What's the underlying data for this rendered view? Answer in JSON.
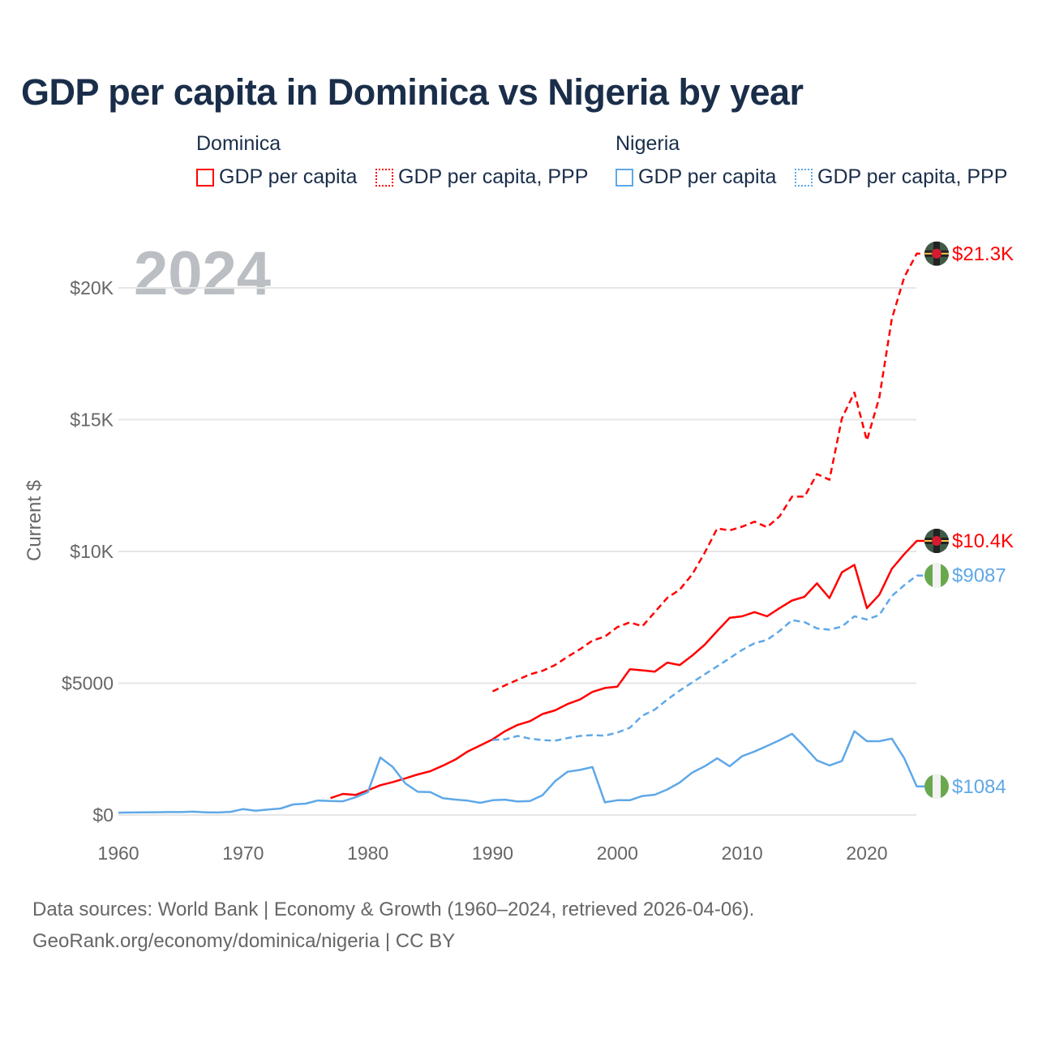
{
  "chart_data": {
    "type": "line",
    "title": "GDP per capita in Dominica vs Nigeria by year",
    "ylabel": "Current $",
    "xlabel": "",
    "xlim": [
      1960,
      2024
    ],
    "ylim": [
      0,
      22000
    ],
    "x_ticks": [
      1960,
      1970,
      1980,
      1990,
      2000,
      2010,
      2020
    ],
    "x_tick_labels": [
      "1960",
      "1970",
      "1980",
      "1990",
      "2000",
      "2010",
      "2020"
    ],
    "y_ticks": [
      0,
      5000,
      10000,
      15000,
      20000
    ],
    "y_tick_labels": [
      "$0",
      "$5000",
      "$10K",
      "$15K",
      "$20K"
    ],
    "grid": true,
    "year_watermark": "2024",
    "legend": {
      "placement": "top",
      "groups": [
        {
          "name": "Dominica",
          "entries": [
            "GDP per capita",
            "GDP per capita, PPP"
          ]
        },
        {
          "name": "Nigeria",
          "entries": [
            "GDP per capita",
            "GDP per capita, PPP"
          ]
        }
      ]
    },
    "series": [
      {
        "name": "Dominica GDP per capita",
        "country": "Dominica",
        "color": "#ff0000",
        "style": "solid",
        "end_label": "$10.4K",
        "start_year": 1977,
        "values": [
          640,
          800,
          760,
          940,
          1130,
          1250,
          1390,
          1540,
          1660,
          1870,
          2100,
          2410,
          2640,
          2870,
          3180,
          3420,
          3560,
          3830,
          3970,
          4210,
          4380,
          4670,
          4820,
          4870,
          5530,
          5490,
          5440,
          5780,
          5690,
          6050,
          6460,
          6980,
          7480,
          7540,
          7700,
          7540,
          7850,
          8140,
          8280,
          8790,
          8230,
          9210,
          9490,
          7850,
          8360,
          9340,
          9900,
          10400
        ]
      },
      {
        "name": "Dominica GDP per capita, PPP",
        "country": "Dominica",
        "color": "#ff0000",
        "style": "dashed",
        "end_label": "$21.3K",
        "start_year": 1990,
        "values": [
          4690,
          4920,
          5130,
          5340,
          5470,
          5690,
          6000,
          6290,
          6620,
          6770,
          7130,
          7310,
          7160,
          7700,
          8240,
          8550,
          9130,
          9950,
          10870,
          10800,
          10940,
          11130,
          10920,
          11330,
          12080,
          12080,
          12940,
          12720,
          15050,
          16030,
          14210,
          15850,
          18820,
          20410,
          21300
        ]
      },
      {
        "name": "Nigeria GDP per capita",
        "country": "Nigeria",
        "color": "#5fa8e8",
        "style": "solid",
        "end_label": "$1084",
        "start_year": 1960,
        "values": [
          90,
          95,
          100,
          105,
          110,
          112,
          125,
          100,
          95,
          120,
          225,
          160,
          205,
          245,
          400,
          430,
          550,
          530,
          520,
          670,
          870,
          2180,
          1820,
          1200,
          880,
          870,
          640,
          585,
          545,
          460,
          560,
          580,
          510,
          530,
          750,
          1280,
          1640,
          1710,
          1820,
          480,
          560,
          560,
          720,
          770,
          970,
          1230,
          1610,
          1850,
          2150,
          1850,
          2230,
          2410,
          2620,
          2840,
          3080,
          2590,
          2070,
          1880,
          2050,
          3180,
          2800,
          2800,
          2900,
          2150,
          1084
        ]
      },
      {
        "name": "Nigeria GDP per capita, PPP",
        "country": "Nigeria",
        "color": "#5fa8e8",
        "style": "dashed",
        "end_label": "$9087",
        "start_year": 1990,
        "values": [
          2850,
          2870,
          3000,
          2900,
          2840,
          2820,
          2920,
          3000,
          3030,
          3010,
          3130,
          3310,
          3770,
          4000,
          4380,
          4720,
          5030,
          5340,
          5640,
          5950,
          6260,
          6520,
          6640,
          6980,
          7390,
          7320,
          7080,
          7030,
          7150,
          7540,
          7420,
          7590,
          8310,
          8720,
          9087
        ]
      }
    ]
  },
  "footer": {
    "line1": "Data sources: World Bank | Economy & Growth (1960–2024, retrieved 2026-04-06).",
    "line2": "GeoRank.org/economy/dominica/nigeria | CC BY"
  }
}
